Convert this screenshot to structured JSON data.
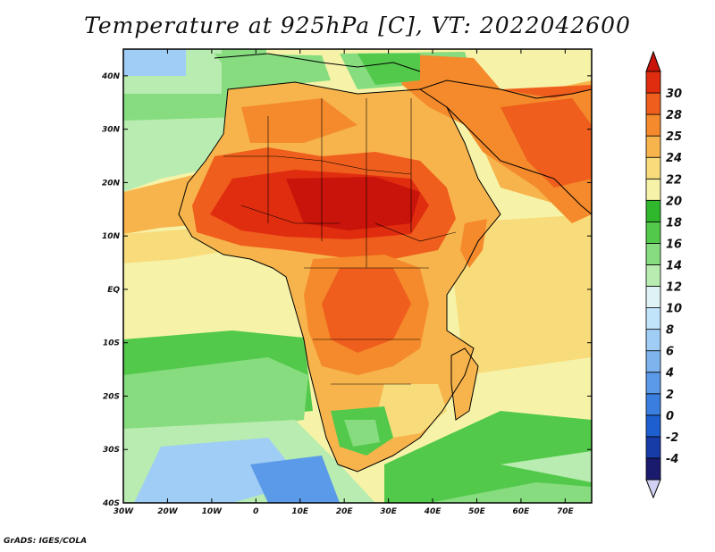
{
  "title": "Temperature at 925hPa [C], VT: 2022042600",
  "credit": "GrADS: IGES/COLA",
  "map": {
    "lon_range": [
      -30,
      76
    ],
    "lat_range": [
      -40,
      45
    ],
    "lon_ticks": [
      {
        "value": -30,
        "label": "30W"
      },
      {
        "value": -20,
        "label": "20W"
      },
      {
        "value": -10,
        "label": "10W"
      },
      {
        "value": 0,
        "label": "0"
      },
      {
        "value": 10,
        "label": "10E"
      },
      {
        "value": 20,
        "label": "20E"
      },
      {
        "value": 30,
        "label": "30E"
      },
      {
        "value": 40,
        "label": "40E"
      },
      {
        "value": 50,
        "label": "50E"
      },
      {
        "value": 60,
        "label": "60E"
      },
      {
        "value": 70,
        "label": "70E"
      }
    ],
    "lat_ticks": [
      {
        "value": 40,
        "label": "40N"
      },
      {
        "value": 30,
        "label": "30N"
      },
      {
        "value": 20,
        "label": "20N"
      },
      {
        "value": 10,
        "label": "10N"
      },
      {
        "value": 0,
        "label": "EQ"
      },
      {
        "value": -10,
        "label": "10S"
      },
      {
        "value": -20,
        "label": "20S"
      },
      {
        "value": -30,
        "label": "30S"
      },
      {
        "value": -40,
        "label": "40S"
      }
    ]
  },
  "colorbar": {
    "levels": [
      "-4",
      "-2",
      "0",
      "2",
      "4",
      "6",
      "8",
      "10",
      "12",
      "14",
      "16",
      "18",
      "20",
      "22",
      "24",
      "25",
      "28",
      "30"
    ],
    "colors": [
      "#1a1a6e",
      "#173ca8",
      "#1e5fd0",
      "#3a7fe0",
      "#5a9ae8",
      "#7db4ee",
      "#9fcdf5",
      "#c2e4fa",
      "#dff3f5",
      "#b8ecb0",
      "#86dc7e",
      "#52c94a",
      "#2fb82c",
      "#f6f3a8",
      "#f8dc7c",
      "#f7b44c",
      "#f48a2b",
      "#ef5e1c",
      "#e02c0f"
    ],
    "under_color": "#d2d2f5",
    "over_color": "#c8140a"
  },
  "colors": {
    "ocean_cold": "#7db4ee",
    "ocean_cool": "#86dc7e",
    "ocean_mild": "#f6f3a8",
    "land_warm": "#f7b44c",
    "land_hot": "#ef5e1c",
    "land_hottest": "#c8140a",
    "highland_cool": "#52c94a"
  }
}
